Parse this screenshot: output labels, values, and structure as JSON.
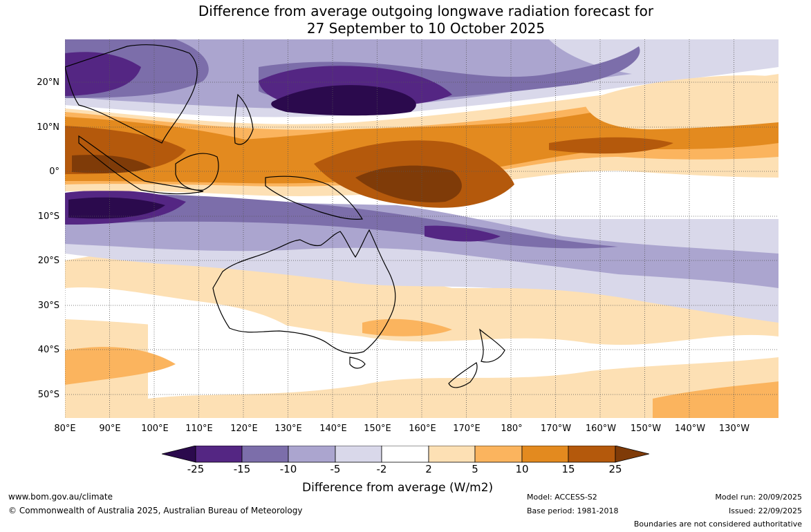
{
  "title": {
    "line1": "Difference from average outgoing longwave radiation forecast for",
    "line2": "27 September to 10 October 2025"
  },
  "map": {
    "lat_labels": [
      "20°N",
      "10°N",
      "0°",
      "10°S",
      "20°S",
      "30°S",
      "40°S",
      "50°S"
    ],
    "lon_labels": [
      "80°E",
      "90°E",
      "100°E",
      "110°E",
      "120°E",
      "130°E",
      "140°E",
      "150°E",
      "160°E",
      "170°E",
      "180°",
      "170°W",
      "160°W",
      "150°W",
      "140°W",
      "130°W"
    ],
    "colors": {
      "lt_m25": "#2b0a4d",
      "m25_m15": "#542683",
      "m15_m10": "#7c6eaa",
      "m10_m5": "#aba5cf",
      "m5_m2": "#d9d8ea",
      "m2_2": "#ffffff",
      "p2_p5": "#fde0b4",
      "p5_p10": "#fbb45e",
      "p10_p15": "#e38a1f",
      "p15_p25": "#b4590c",
      "gt_p25": "#7f3b08",
      "coast": "#000000",
      "grid": "#555555"
    }
  },
  "legend": {
    "ticks": [
      "-25",
      "-15",
      "-10",
      "-5",
      "-2",
      "2",
      "5",
      "10",
      "15",
      "25"
    ],
    "colors": [
      "#2b0a4d",
      "#542683",
      "#7c6eaa",
      "#aba5cf",
      "#d9d8ea",
      "#ffffff",
      "#fde0b4",
      "#fbb45e",
      "#e38a1f",
      "#b4590c",
      "#7f3b08"
    ],
    "title": "Difference from average (W/m2)"
  },
  "footer": {
    "website": "www.bom.gov.au/climate",
    "copyright": "© Commonwealth of Australia 2025, Australian Bureau of Meteorology",
    "model": "Model: ACCESS-S2",
    "base_period": "Base period: 1981-2018",
    "model_run": "Model run: 20/09/2025",
    "issued": "Issued: 22/09/2025",
    "disclaimer": "Boundaries are not considered authoritative"
  }
}
